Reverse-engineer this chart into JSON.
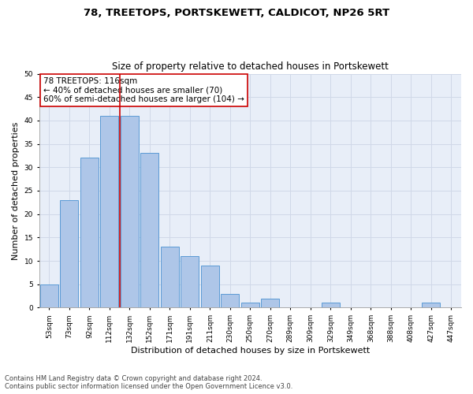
{
  "title": "78, TREETOPS, PORTSKEWETT, CALDICOT, NP26 5RT",
  "subtitle": "Size of property relative to detached houses in Portskewett",
  "xlabel": "Distribution of detached houses by size in Portskewett",
  "ylabel": "Number of detached properties",
  "bin_labels": [
    "53sqm",
    "73sqm",
    "92sqm",
    "112sqm",
    "132sqm",
    "152sqm",
    "171sqm",
    "191sqm",
    "211sqm",
    "230sqm",
    "250sqm",
    "270sqm",
    "289sqm",
    "309sqm",
    "329sqm",
    "349sqm",
    "368sqm",
    "388sqm",
    "408sqm",
    "427sqm",
    "447sqm"
  ],
  "bar_values": [
    5,
    23,
    32,
    41,
    41,
    33,
    13,
    11,
    9,
    3,
    1,
    2,
    0,
    0,
    1,
    0,
    0,
    0,
    0,
    1,
    0
  ],
  "bar_color": "#aec6e8",
  "bar_edge_color": "#5b9bd5",
  "vline_x": 3.5,
  "vline_color": "#cc0000",
  "annotation_text": "78 TREETOPS: 116sqm\n← 40% of detached houses are smaller (70)\n60% of semi-detached houses are larger (104) →",
  "annotation_box_color": "#ffffff",
  "annotation_box_edge": "#cc0000",
  "ylim": [
    0,
    50
  ],
  "yticks": [
    0,
    5,
    10,
    15,
    20,
    25,
    30,
    35,
    40,
    45,
    50
  ],
  "grid_color": "#d0d8e8",
  "bg_color": "#e8eef8",
  "footnote1": "Contains HM Land Registry data © Crown copyright and database right 2024.",
  "footnote2": "Contains public sector information licensed under the Open Government Licence v3.0.",
  "title_fontsize": 9.5,
  "subtitle_fontsize": 8.5,
  "xlabel_fontsize": 8,
  "ylabel_fontsize": 8,
  "tick_fontsize": 6.5,
  "annotation_fontsize": 7.5,
  "footnote_fontsize": 6
}
